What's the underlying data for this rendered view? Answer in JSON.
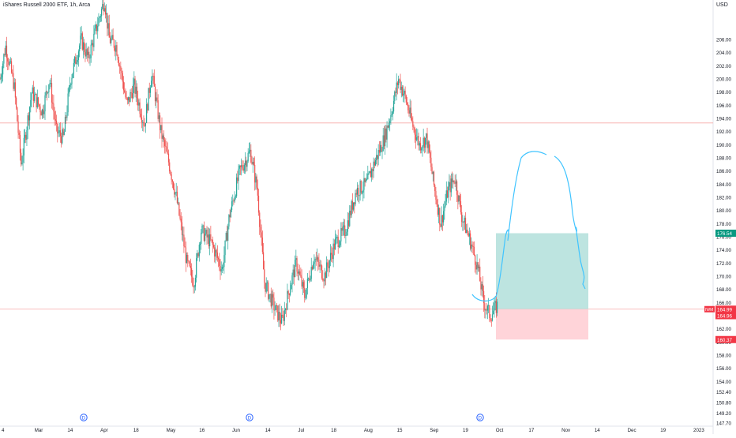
{
  "header": {
    "title": "iShares Russell 2000 ETF, 1h, Arca",
    "currency": "USD"
  },
  "colors": {
    "up": "#26a69a",
    "down": "#ef5350",
    "hline": "#f7a9a8",
    "drawing": "#40c4ff",
    "profit_zone": "#b2dfdb",
    "loss_zone": "#ffcdd2",
    "axis_text": "#131722",
    "dividend": "#2962ff",
    "tag_green": "#089981",
    "tag_red": "#f23645"
  },
  "chart_data": {
    "type": "candlestick",
    "x_tick_labels": [
      "4",
      "Mar",
      "14",
      "Apr",
      "18",
      "May",
      "16",
      "Jun",
      "14",
      "Jul",
      "18",
      "Aug",
      "15",
      "Sep",
      "19",
      "Oct",
      "17",
      "Nov",
      "14",
      "Dec",
      "19",
      "2023"
    ],
    "y_ticks": [
      147.7,
      149.2,
      150.8,
      152.4,
      154.0,
      156.0,
      158.0,
      160.0,
      162.0,
      164.0,
      166.0,
      168.0,
      170.0,
      172.0,
      174.0,
      176.0,
      178.0,
      180.0,
      182.0,
      184.0,
      186.0,
      188.0,
      190.0,
      192.0,
      194.0,
      196.0,
      198.0,
      200.0,
      202.0,
      204.0,
      206.0
    ],
    "y_tick_labels": [
      "147.70",
      "149.20",
      "150.80",
      "152.40",
      "154.00",
      "156.00",
      "158.00",
      "160.00",
      "162.00",
      "164.00",
      "166.00",
      "168.00",
      "170.00",
      "172.00",
      "174.00",
      "176.00",
      "178.00",
      "180.00",
      "182.00",
      "184.00",
      "186.00",
      "188.00",
      "190.00",
      "192.00",
      "194.00",
      "196.00",
      "198.00",
      "200.00",
      "202.00",
      "204.00",
      "206.00"
    ],
    "price_path": [
      [
        0.0,
        200
      ],
      [
        0.008,
        205
      ],
      [
        0.02,
        199
      ],
      [
        0.03,
        187
      ],
      [
        0.045,
        198
      ],
      [
        0.06,
        195
      ],
      [
        0.07,
        200
      ],
      [
        0.08,
        192
      ],
      [
        0.09,
        191
      ],
      [
        0.1,
        200
      ],
      [
        0.115,
        206
      ],
      [
        0.125,
        203
      ],
      [
        0.14,
        209
      ],
      [
        0.148,
        212
      ],
      [
        0.155,
        206
      ],
      [
        0.165,
        205
      ],
      [
        0.18,
        196
      ],
      [
        0.19,
        199
      ],
      [
        0.205,
        193
      ],
      [
        0.215,
        201
      ],
      [
        0.228,
        192
      ],
      [
        0.24,
        187
      ],
      [
        0.25,
        182
      ],
      [
        0.265,
        172
      ],
      [
        0.275,
        169
      ],
      [
        0.285,
        177
      ],
      [
        0.3,
        175
      ],
      [
        0.315,
        171
      ],
      [
        0.325,
        179
      ],
      [
        0.34,
        186
      ],
      [
        0.355,
        189
      ],
      [
        0.365,
        183
      ],
      [
        0.375,
        169
      ],
      [
        0.39,
        165
      ],
      [
        0.4,
        163
      ],
      [
        0.41,
        168
      ],
      [
        0.42,
        172
      ],
      [
        0.432,
        167
      ],
      [
        0.445,
        173
      ],
      [
        0.46,
        170
      ],
      [
        0.475,
        175
      ],
      [
        0.49,
        177
      ],
      [
        0.505,
        183
      ],
      [
        0.52,
        184
      ],
      [
        0.53,
        187
      ],
      [
        0.545,
        191
      ],
      [
        0.555,
        195
      ],
      [
        0.565,
        200
      ],
      [
        0.575,
        197
      ],
      [
        0.585,
        193
      ],
      [
        0.595,
        190
      ],
      [
        0.605,
        191
      ],
      [
        0.615,
        184
      ],
      [
        0.625,
        178
      ],
      [
        0.635,
        183
      ],
      [
        0.645,
        185
      ],
      [
        0.655,
        179
      ],
      [
        0.668,
        175
      ],
      [
        0.678,
        171
      ],
      [
        0.686,
        166
      ],
      [
        0.695,
        164
      ],
      [
        0.705,
        165.5
      ]
    ],
    "horizontal_lines": [
      193.3,
      164.99
    ],
    "position": {
      "entry": 164.99,
      "target": 176.54,
      "stop": 160.37
    },
    "price_tags": [
      {
        "label": "176.54",
        "value": 176.54,
        "color": "green"
      },
      {
        "label": "164.99",
        "value": 164.99,
        "color": "red",
        "prefix": "IWM"
      },
      {
        "label": "164.96",
        "value": 164.96,
        "color": "red"
      },
      {
        "label": "160.37",
        "value": 160.37,
        "color": "red"
      }
    ],
    "dividend_marker": "D"
  }
}
